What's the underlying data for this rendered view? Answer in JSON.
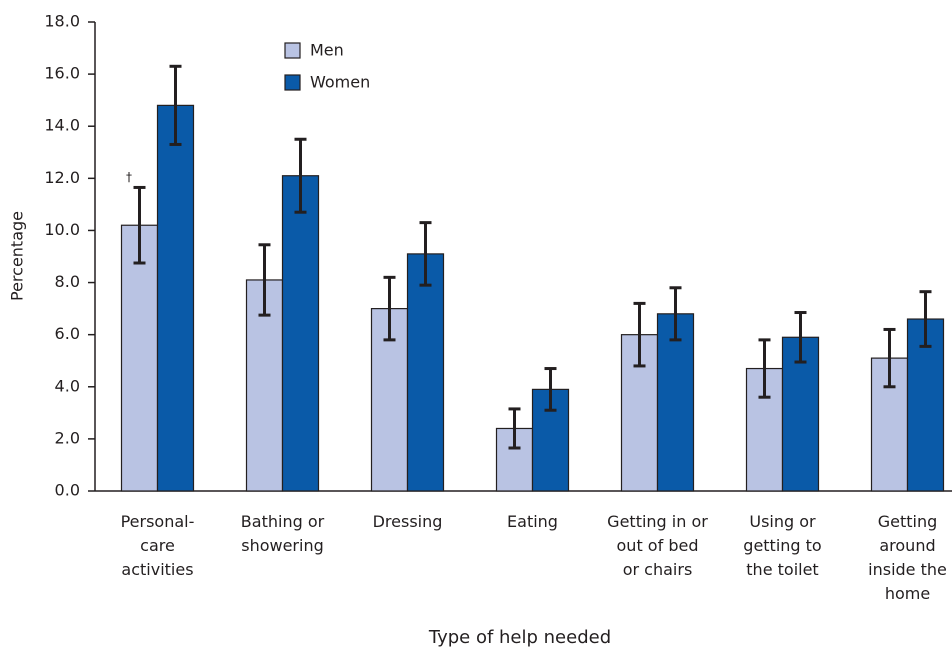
{
  "chart_data": {
    "type": "bar",
    "categories": [
      "Personal-\ncare\nactivities",
      "Bathing or\nshowering",
      "Dressing",
      "Eating",
      "Getting in or\nout of bed\nor chairs",
      "Using or\ngetting to\nthe toilet",
      "Getting\naround\ninside the\nhome"
    ],
    "series": [
      {
        "name": "Men",
        "color": "#b9c3e3",
        "values": [
          10.2,
          8.1,
          7.0,
          2.4,
          6.0,
          4.7,
          5.1
        ],
        "errors": [
          1.45,
          1.35,
          1.2,
          0.75,
          1.2,
          1.1,
          1.1
        ]
      },
      {
        "name": "Women",
        "color": "#0a5aa8",
        "values": [
          14.8,
          12.1,
          9.1,
          3.9,
          6.8,
          5.9,
          6.6
        ],
        "errors": [
          1.5,
          1.4,
          1.2,
          0.8,
          1.0,
          0.95,
          1.05
        ]
      }
    ],
    "x_label": "Type of help needed",
    "y_label": "Percentage",
    "annotation": "†",
    "ylim": [
      0,
      18
    ],
    "yticks": [
      {
        "value": 0,
        "label": "0.0"
      },
      {
        "value": 2,
        "label": "2.0"
      },
      {
        "value": 4,
        "label": "4.0"
      },
      {
        "value": 6,
        "label": "6.0"
      },
      {
        "value": 8,
        "label": "8.0"
      },
      {
        "value": 10,
        "label": "10.0"
      },
      {
        "value": 12,
        "label": "12.0"
      },
      {
        "value": 14,
        "label": "14.0"
      },
      {
        "value": 16,
        "label": "16.0"
      },
      {
        "value": 18,
        "label": "18.0"
      }
    ]
  }
}
